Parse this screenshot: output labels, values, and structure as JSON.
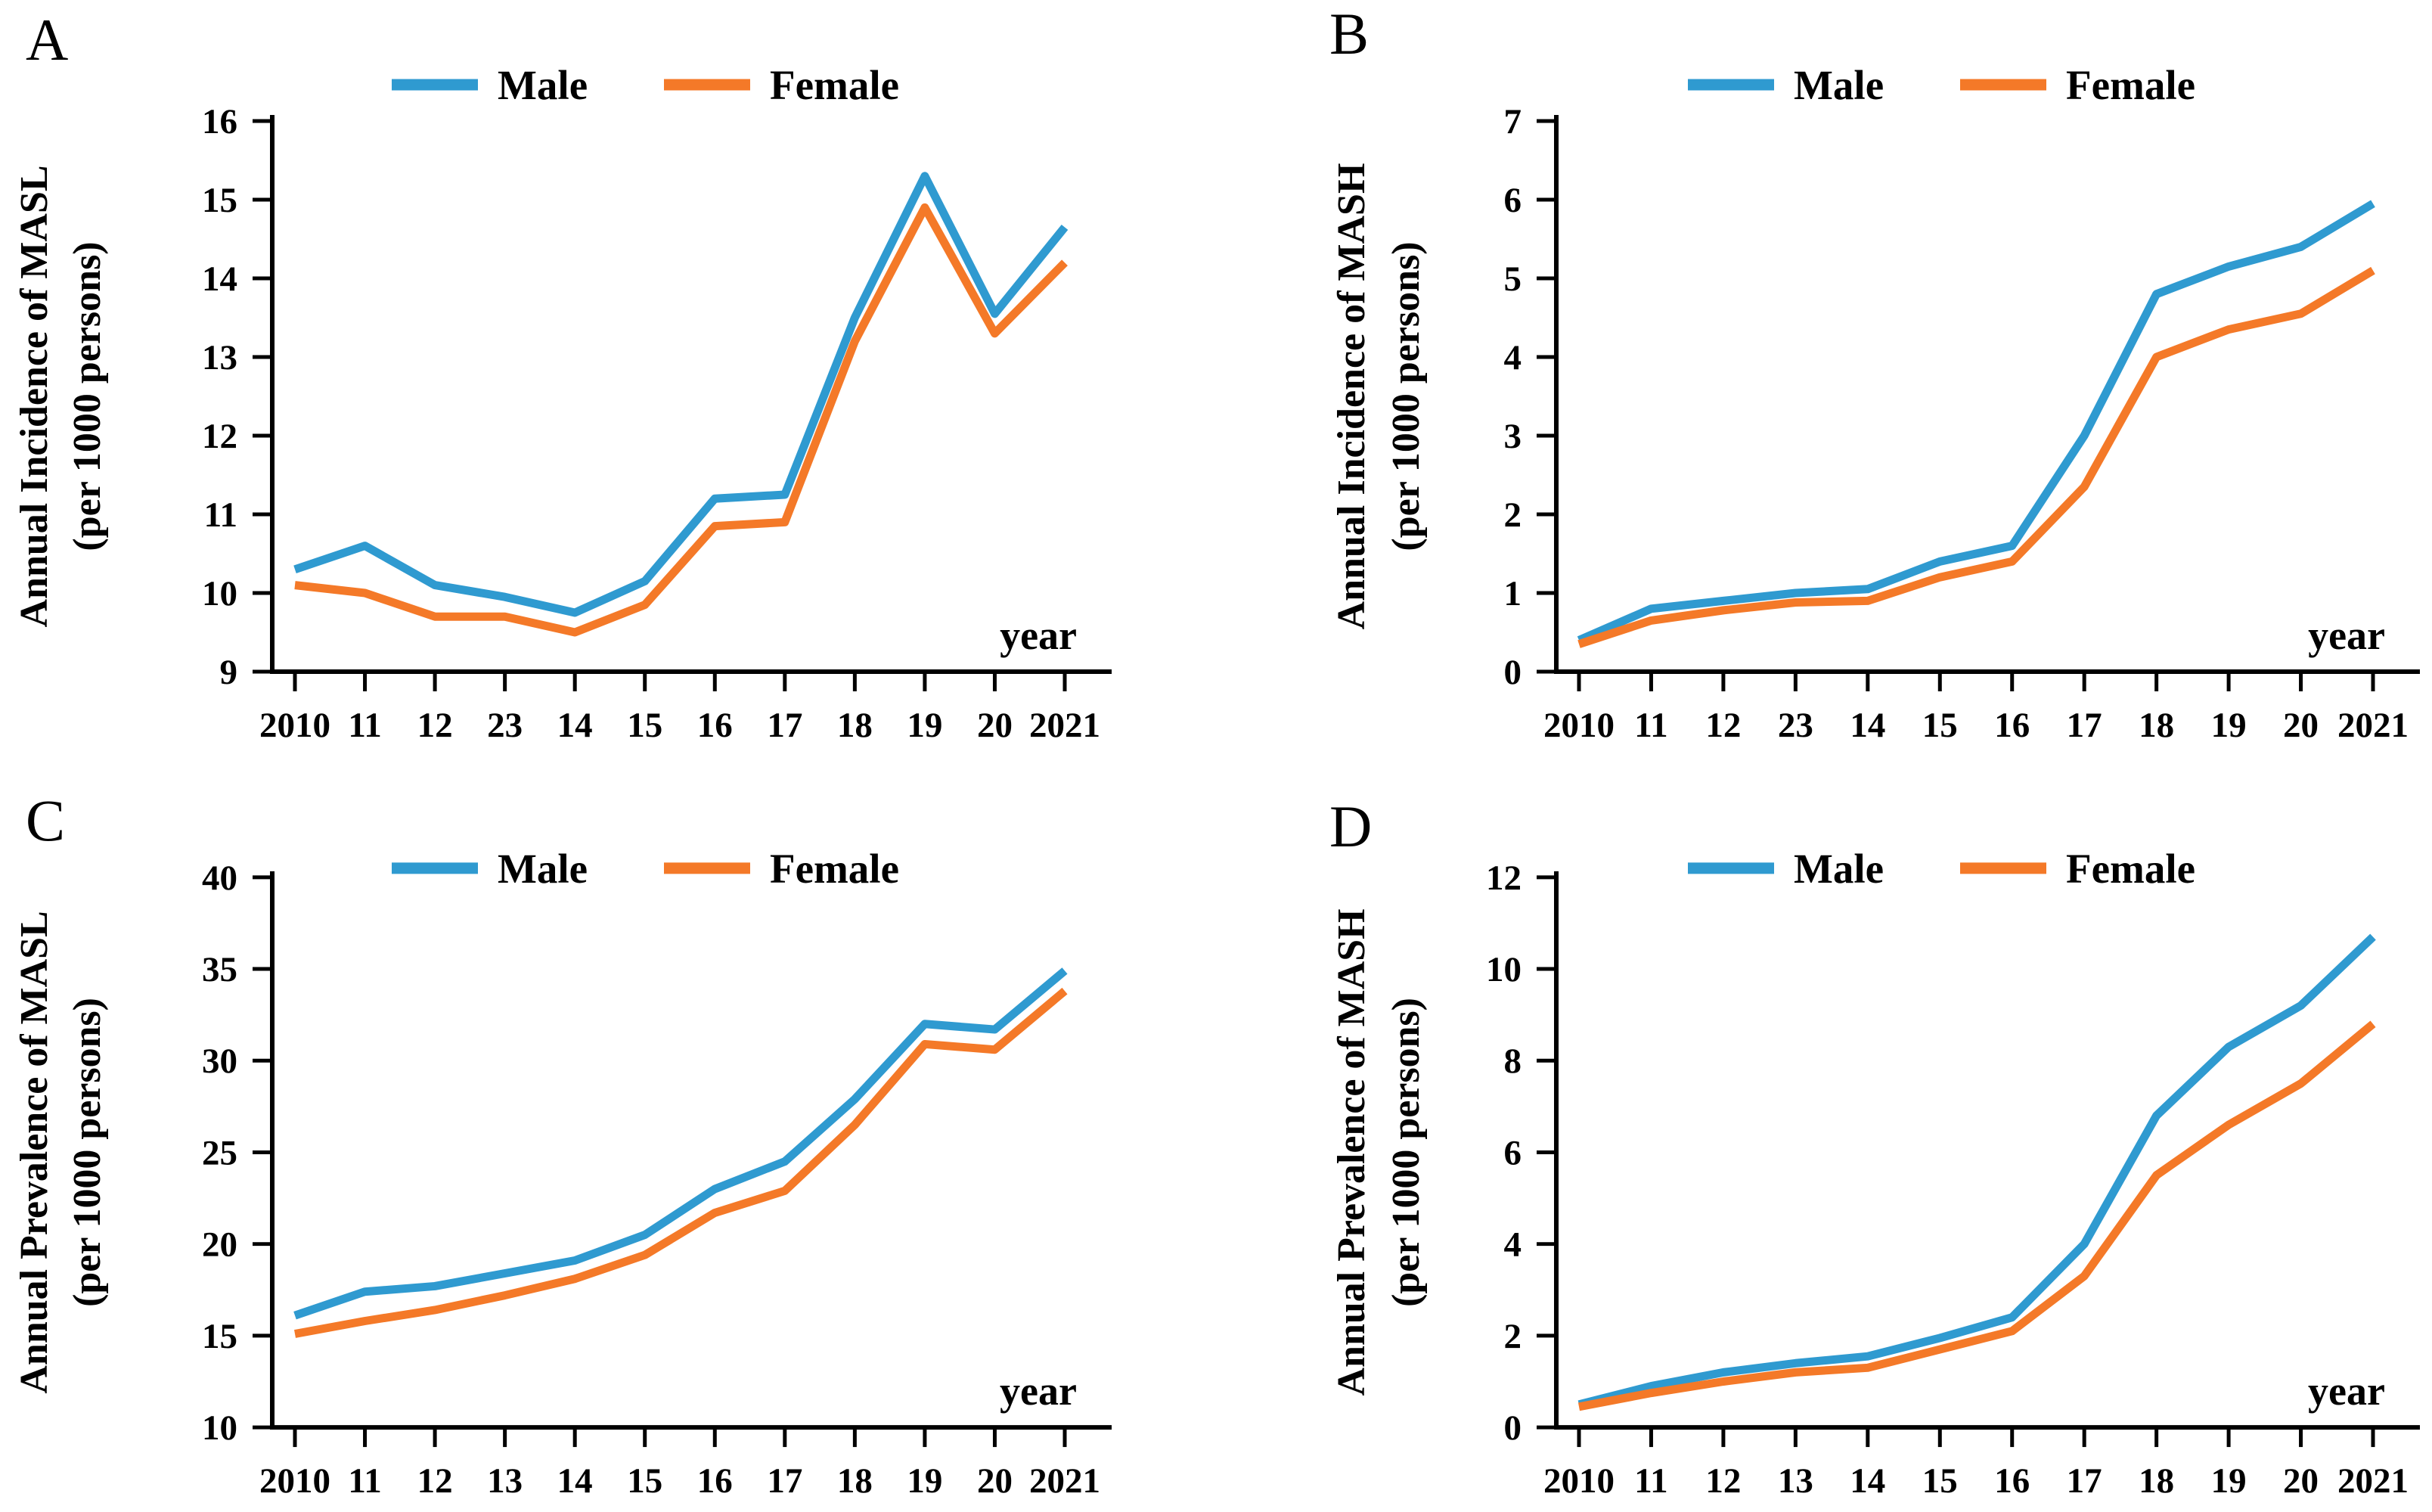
{
  "figure": {
    "background": "#ffffff",
    "description": "Four line charts (A-D) of annual incidence and prevalence of MASL and MASH per 1000 persons, by sex, 2010-2021"
  },
  "colors": {
    "male": "#2F9AD0",
    "female": "#F47928",
    "axis": "#000000",
    "text": "#000000"
  },
  "legend": {
    "male_label": "Male",
    "female_label": "Female",
    "position": "top"
  },
  "chart_data": [
    {
      "type": "line",
      "panel_label": "A",
      "title_lines": [
        "Annual  Incidence of MASL",
        "(per 1000 persons)"
      ],
      "xlabel": "year",
      "x": [
        "2010",
        "11",
        "12",
        "23",
        "14",
        "15",
        "16",
        "17",
        "18",
        "19",
        "20",
        "2021"
      ],
      "ylim": [
        9,
        16
      ],
      "ytick_step": 1,
      "grid": false,
      "legend_position": "top",
      "series": [
        {
          "name": "Male",
          "color": "#2F9AD0",
          "values": [
            10.3,
            10.6,
            10.1,
            9.95,
            9.75,
            10.15,
            11.2,
            11.25,
            13.5,
            15.3,
            13.55,
            14.65
          ]
        },
        {
          "name": "Female",
          "color": "#F47928",
          "values": [
            10.1,
            10.0,
            9.7,
            9.7,
            9.5,
            9.85,
            10.85,
            10.9,
            13.2,
            14.9,
            13.3,
            14.2
          ]
        }
      ]
    },
    {
      "type": "line",
      "panel_label": "B",
      "title_lines": [
        "Annual  Incidence of MASH",
        "(per 1000 persons)"
      ],
      "xlabel": "year",
      "x": [
        "2010",
        "11",
        "12",
        "23",
        "14",
        "15",
        "16",
        "17",
        "18",
        "19",
        "20",
        "2021"
      ],
      "ylim": [
        0,
        7
      ],
      "ytick_step": 1,
      "grid": false,
      "legend_position": "top",
      "series": [
        {
          "name": "Male",
          "color": "#2F9AD0",
          "values": [
            0.4,
            0.8,
            0.9,
            1.0,
            1.05,
            1.4,
            1.6,
            3.0,
            4.8,
            5.15,
            5.4,
            5.95
          ]
        },
        {
          "name": "Female",
          "color": "#F47928",
          "values": [
            0.35,
            0.65,
            0.78,
            0.88,
            0.9,
            1.2,
            1.4,
            2.35,
            4.0,
            4.35,
            4.55,
            5.1
          ]
        }
      ]
    },
    {
      "type": "line",
      "panel_label": "C",
      "title_lines": [
        "Annual  Prevalence of MASL",
        "(per 1000 persons)"
      ],
      "xlabel": "year",
      "x": [
        "2010",
        "11",
        "12",
        "13",
        "14",
        "15",
        "16",
        "17",
        "18",
        "19",
        "20",
        "2021"
      ],
      "ylim": [
        10,
        40
      ],
      "ytick_step": 5,
      "grid": false,
      "legend_position": "top",
      "series": [
        {
          "name": "Male",
          "color": "#2F9AD0",
          "values": [
            16.1,
            17.4,
            17.7,
            18.4,
            19.1,
            20.5,
            23.0,
            24.5,
            27.9,
            32.0,
            31.7,
            34.9
          ]
        },
        {
          "name": "Female",
          "color": "#F47928",
          "values": [
            15.1,
            15.8,
            16.4,
            17.2,
            18.1,
            19.4,
            21.7,
            22.9,
            26.5,
            30.9,
            30.6,
            33.8
          ]
        }
      ]
    },
    {
      "type": "line",
      "panel_label": "D",
      "title_lines": [
        "Annual  Prevalence of MASH",
        "(per 1000 persons)"
      ],
      "xlabel": "year",
      "x": [
        "2010",
        "11",
        "12",
        "13",
        "14",
        "15",
        "16",
        "17",
        "18",
        "19",
        "20",
        "2021"
      ],
      "ylim": [
        0,
        12
      ],
      "ytick_step": 2,
      "grid": false,
      "legend_position": "top",
      "series": [
        {
          "name": "Male",
          "color": "#2F9AD0",
          "values": [
            0.5,
            0.9,
            1.2,
            1.4,
            1.55,
            1.95,
            2.4,
            4.0,
            6.8,
            8.3,
            9.2,
            10.7
          ]
        },
        {
          "name": "Female",
          "color": "#F47928",
          "values": [
            0.45,
            0.75,
            1.0,
            1.2,
            1.3,
            1.7,
            2.1,
            3.3,
            5.5,
            6.6,
            7.5,
            8.8
          ]
        }
      ]
    }
  ]
}
